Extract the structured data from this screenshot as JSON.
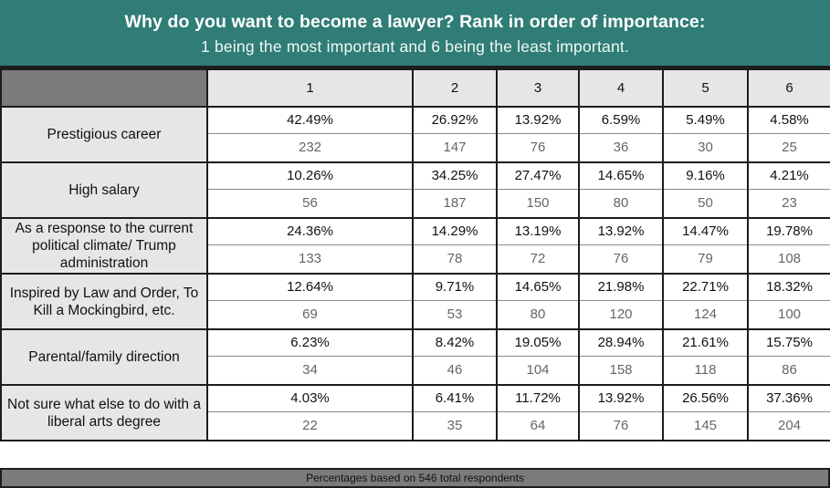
{
  "title": "Why do you want to become a lawyer? Rank in order of importance:",
  "subtitle": "1 being the most important and 6 being the least important.",
  "footer": "Percentages based on 546  total respondents",
  "colors": {
    "header_bg": "#2f7d76",
    "label_bg": "#e7e6e7",
    "corner_bg": "#7b7b7b"
  },
  "chart_data": {
    "type": "table",
    "columns": [
      "1",
      "2",
      "3",
      "4",
      "5",
      "6"
    ],
    "rows": [
      {
        "label": "Prestigious career",
        "percents": [
          "42.49%",
          "26.92%",
          "13.92%",
          "6.59%",
          "5.49%",
          "4.58%"
        ],
        "counts": [
          232,
          147,
          76,
          36,
          30,
          25
        ]
      },
      {
        "label": "High salary",
        "percents": [
          "10.26%",
          "34.25%",
          "27.47%",
          "14.65%",
          "9.16%",
          "4.21%"
        ],
        "counts": [
          56,
          187,
          150,
          80,
          50,
          23
        ]
      },
      {
        "label": "As a response to the current political climate/ Trump administration",
        "percents": [
          "24.36%",
          "14.29%",
          "13.19%",
          "13.92%",
          "14.47%",
          "19.78%"
        ],
        "counts": [
          133,
          78,
          72,
          76,
          79,
          108
        ]
      },
      {
        "label": "Inspired by Law and Order, To Kill a Mockingbird, etc.",
        "percents": [
          "12.64%",
          "9.71%",
          "14.65%",
          "21.98%",
          "22.71%",
          "18.32%"
        ],
        "counts": [
          69,
          53,
          80,
          120,
          124,
          100
        ]
      },
      {
        "label": "Parental/family direction",
        "percents": [
          "6.23%",
          "8.42%",
          "19.05%",
          "28.94%",
          "21.61%",
          "15.75%"
        ],
        "counts": [
          34,
          46,
          104,
          158,
          118,
          86
        ]
      },
      {
        "label": "Not sure what else to do with a liberal arts degree",
        "percents": [
          "4.03%",
          "6.41%",
          "11.72%",
          "13.92%",
          "26.56%",
          "37.36%"
        ],
        "counts": [
          22,
          35,
          64,
          76,
          145,
          204
        ]
      }
    ]
  }
}
